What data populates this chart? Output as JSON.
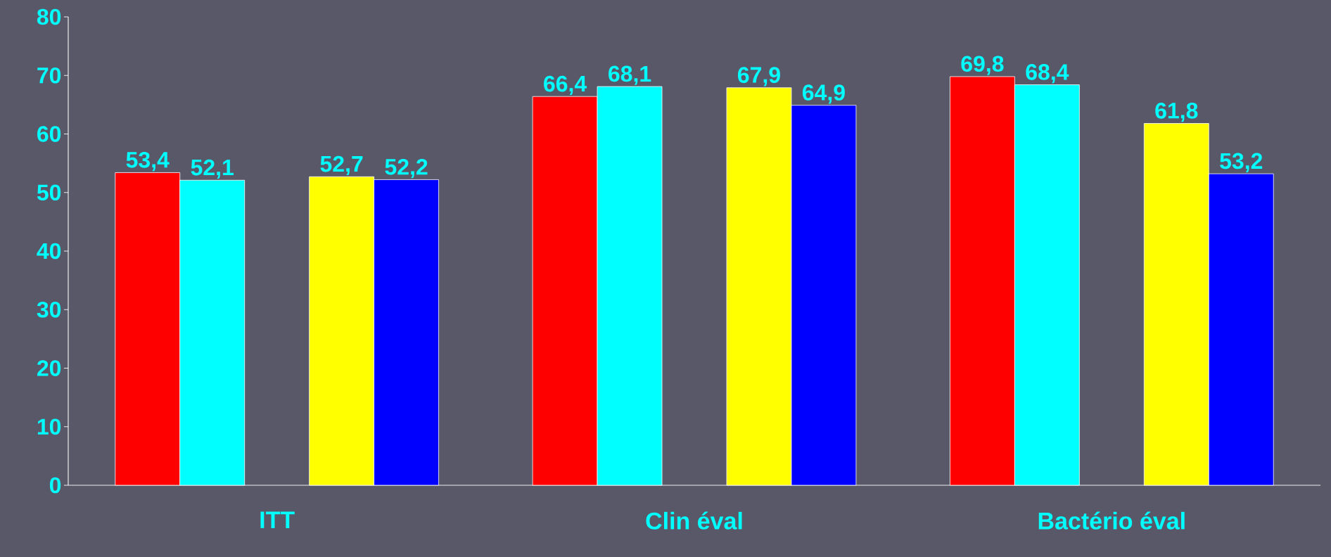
{
  "chart_data": {
    "type": "bar",
    "categories": [
      "ITT",
      "Clin éval",
      "Bactério éval"
    ],
    "series": [
      {
        "color": "#ff0000",
        "values": [
          53.4,
          66.4,
          69.8
        ],
        "value_labels": [
          "53,4",
          "66,4",
          "69,8"
        ]
      },
      {
        "color": "#00ffff",
        "values": [
          52.1,
          68.1,
          68.4
        ],
        "value_labels": [
          "52,1",
          "68,1",
          "68,4"
        ]
      },
      {
        "color": "#ffff00",
        "values": [
          52.7,
          67.9,
          61.8
        ],
        "value_labels": [
          "52,7",
          "67,9",
          "61,8"
        ]
      },
      {
        "color": "#0000ff",
        "values": [
          52.2,
          64.9,
          53.2
        ],
        "value_labels": [
          "52,2",
          "64,9",
          "53,2"
        ]
      }
    ],
    "ylim": [
      0,
      80
    ],
    "yticks": [
      0,
      10,
      20,
      30,
      40,
      50,
      60,
      70,
      80
    ]
  }
}
